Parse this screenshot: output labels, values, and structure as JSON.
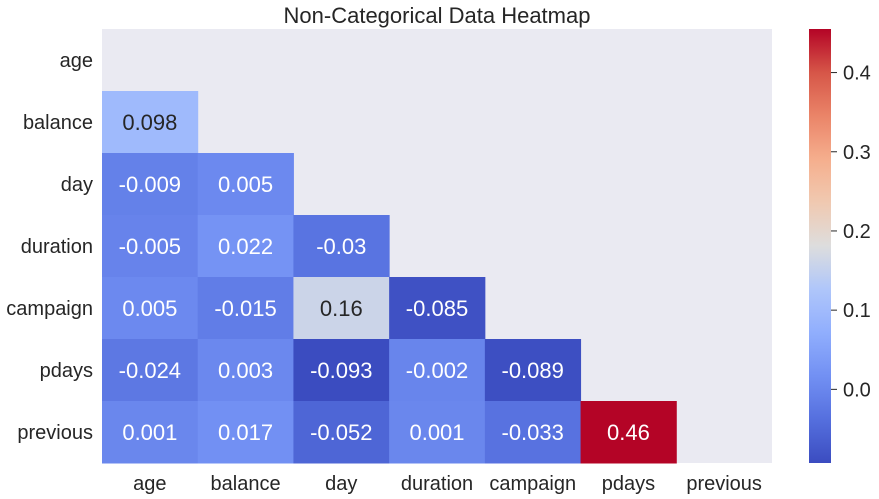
{
  "chart_data": {
    "type": "heatmap",
    "title": "Non-Categorical Data Heatmap",
    "xlabel": "",
    "ylabel": "",
    "x_categories": [
      "age",
      "balance",
      "day",
      "duration",
      "campaign",
      "pdays",
      "previous"
    ],
    "y_categories": [
      "age",
      "balance",
      "day",
      "duration",
      "campaign",
      "pdays",
      "previous"
    ],
    "cells": [
      {
        "row": 1,
        "col": 0,
        "value": 0.098,
        "label": "0.098"
      },
      {
        "row": 2,
        "col": 0,
        "value": -0.009,
        "label": "-0.009"
      },
      {
        "row": 2,
        "col": 1,
        "value": 0.005,
        "label": "0.005"
      },
      {
        "row": 3,
        "col": 0,
        "value": -0.005,
        "label": "-0.005"
      },
      {
        "row": 3,
        "col": 1,
        "value": 0.022,
        "label": "0.022"
      },
      {
        "row": 3,
        "col": 2,
        "value": -0.03,
        "label": "-0.03"
      },
      {
        "row": 4,
        "col": 0,
        "value": 0.005,
        "label": "0.005"
      },
      {
        "row": 4,
        "col": 1,
        "value": -0.015,
        "label": "-0.015"
      },
      {
        "row": 4,
        "col": 2,
        "value": 0.16,
        "label": "0.16"
      },
      {
        "row": 4,
        "col": 3,
        "value": -0.085,
        "label": "-0.085"
      },
      {
        "row": 5,
        "col": 0,
        "value": -0.024,
        "label": "-0.024"
      },
      {
        "row": 5,
        "col": 1,
        "value": 0.003,
        "label": "0.003"
      },
      {
        "row": 5,
        "col": 2,
        "value": -0.093,
        "label": "-0.093"
      },
      {
        "row": 5,
        "col": 3,
        "value": -0.002,
        "label": "-0.002"
      },
      {
        "row": 5,
        "col": 4,
        "value": -0.089,
        "label": "-0.089"
      },
      {
        "row": 6,
        "col": 0,
        "value": 0.001,
        "label": "0.001"
      },
      {
        "row": 6,
        "col": 1,
        "value": 0.017,
        "label": "0.017"
      },
      {
        "row": 6,
        "col": 2,
        "value": -0.052,
        "label": "-0.052"
      },
      {
        "row": 6,
        "col": 3,
        "value": 0.001,
        "label": "0.001"
      },
      {
        "row": 6,
        "col": 4,
        "value": -0.033,
        "label": "-0.033"
      },
      {
        "row": 6,
        "col": 5,
        "value": 0.46,
        "label": "0.46"
      }
    ],
    "colormap": "coolwarm",
    "color_range": [
      -0.093,
      0.455
    ],
    "colorbar_ticks": [
      0.0,
      0.1,
      0.2,
      0.3,
      0.4
    ],
    "colorbar_tick_labels": [
      "0.0",
      "0.1",
      "0.2",
      "0.3",
      "0.4"
    ],
    "mask": "upper-triangle",
    "colors": {
      "background": "#eaeaf2",
      "text_dark": "#262626",
      "text_light": "#ffffff"
    }
  }
}
